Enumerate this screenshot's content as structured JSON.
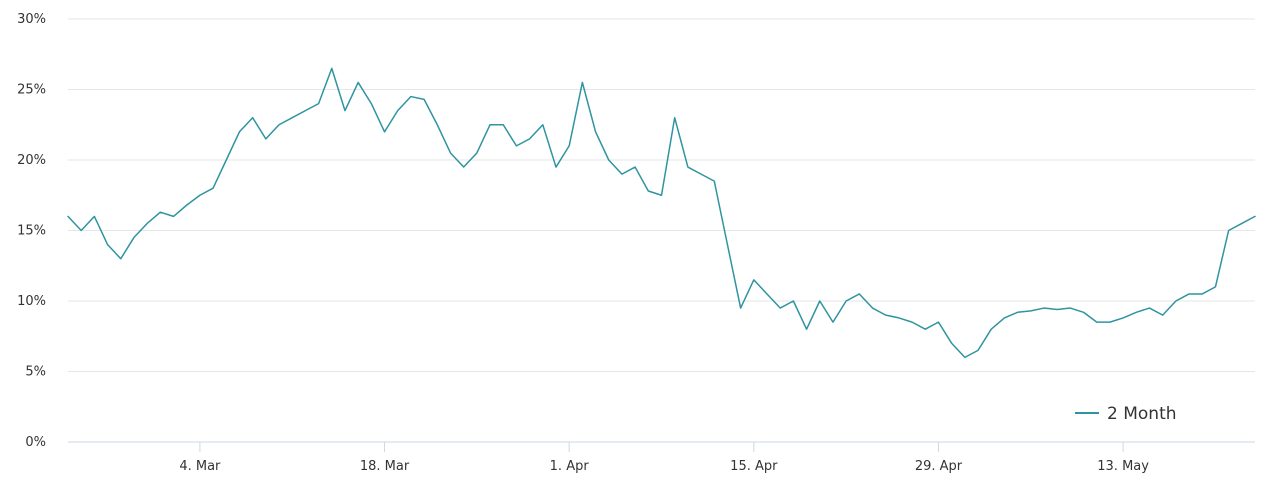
{
  "chart_data": {
    "type": "line",
    "title": "",
    "xlabel": "",
    "ylabel": "",
    "grid": "horizontal",
    "legend_position": "bottom-right",
    "ylim": [
      0,
      30
    ],
    "xlim": [
      "2024-02-23",
      "2024-05-23"
    ],
    "y_ticks": [
      0,
      5,
      10,
      15,
      20,
      25,
      30
    ],
    "y_tick_labels": [
      "0%",
      "5%",
      "10%",
      "15%",
      "20%",
      "25%",
      "30%"
    ],
    "x_ticks": [
      "2024-03-04",
      "2024-03-18",
      "2024-04-01",
      "2024-04-15",
      "2024-04-29",
      "2024-05-13"
    ],
    "x_tick_labels": [
      "4. Mar",
      "18. Mar",
      "1. Apr",
      "15. Apr",
      "29. Apr",
      "13. May"
    ],
    "colors": {
      "series": "#2f94a0",
      "grid": "#e6e6e6",
      "axis": "#ccd6eb"
    },
    "series": [
      {
        "name": "2 Month",
        "points": [
          [
            "2024-02-23",
            16.0
          ],
          [
            "2024-02-24",
            15.0
          ],
          [
            "2024-02-25",
            16.0
          ],
          [
            "2024-02-26",
            14.0
          ],
          [
            "2024-02-27",
            13.0
          ],
          [
            "2024-02-28",
            14.5
          ],
          [
            "2024-02-29",
            15.5
          ],
          [
            "2024-03-01",
            16.3
          ],
          [
            "2024-03-02",
            16.0
          ],
          [
            "2024-03-03",
            16.8
          ],
          [
            "2024-03-04",
            17.5
          ],
          [
            "2024-03-05",
            18.0
          ],
          [
            "2024-03-06",
            20.0
          ],
          [
            "2024-03-07",
            22.0
          ],
          [
            "2024-03-08",
            23.0
          ],
          [
            "2024-03-09",
            21.5
          ],
          [
            "2024-03-10",
            22.5
          ],
          [
            "2024-03-11",
            23.0
          ],
          [
            "2024-03-12",
            23.5
          ],
          [
            "2024-03-13",
            24.0
          ],
          [
            "2024-03-14",
            26.5
          ],
          [
            "2024-03-15",
            23.5
          ],
          [
            "2024-03-16",
            25.5
          ],
          [
            "2024-03-17",
            24.0
          ],
          [
            "2024-03-18",
            22.0
          ],
          [
            "2024-03-19",
            23.5
          ],
          [
            "2024-03-20",
            24.5
          ],
          [
            "2024-03-21",
            24.3
          ],
          [
            "2024-03-22",
            22.5
          ],
          [
            "2024-03-23",
            20.5
          ],
          [
            "2024-03-24",
            19.5
          ],
          [
            "2024-03-25",
            20.5
          ],
          [
            "2024-03-26",
            22.5
          ],
          [
            "2024-03-27",
            22.5
          ],
          [
            "2024-03-28",
            21.0
          ],
          [
            "2024-03-29",
            21.5
          ],
          [
            "2024-03-30",
            22.5
          ],
          [
            "2024-03-31",
            19.5
          ],
          [
            "2024-04-01",
            21.0
          ],
          [
            "2024-04-02",
            25.5
          ],
          [
            "2024-04-03",
            22.0
          ],
          [
            "2024-04-04",
            20.0
          ],
          [
            "2024-04-05",
            19.0
          ],
          [
            "2024-04-06",
            19.5
          ],
          [
            "2024-04-07",
            17.8
          ],
          [
            "2024-04-08",
            17.5
          ],
          [
            "2024-04-09",
            23.0
          ],
          [
            "2024-04-10",
            19.5
          ],
          [
            "2024-04-11",
            19.0
          ],
          [
            "2024-04-12",
            18.5
          ],
          [
            "2024-04-13",
            14.0
          ],
          [
            "2024-04-14",
            9.5
          ],
          [
            "2024-04-15",
            11.5
          ],
          [
            "2024-04-16",
            10.5
          ],
          [
            "2024-04-17",
            9.5
          ],
          [
            "2024-04-18",
            10.0
          ],
          [
            "2024-04-19",
            8.0
          ],
          [
            "2024-04-20",
            10.0
          ],
          [
            "2024-04-21",
            8.5
          ],
          [
            "2024-04-22",
            10.0
          ],
          [
            "2024-04-23",
            10.5
          ],
          [
            "2024-04-24",
            9.5
          ],
          [
            "2024-04-25",
            9.0
          ],
          [
            "2024-04-26",
            8.8
          ],
          [
            "2024-04-27",
            8.5
          ],
          [
            "2024-04-28",
            8.0
          ],
          [
            "2024-04-29",
            8.5
          ],
          [
            "2024-04-30",
            7.0
          ],
          [
            "2024-05-01",
            6.0
          ],
          [
            "2024-05-02",
            6.5
          ],
          [
            "2024-05-03",
            8.0
          ],
          [
            "2024-05-04",
            8.8
          ],
          [
            "2024-05-05",
            9.2
          ],
          [
            "2024-05-06",
            9.3
          ],
          [
            "2024-05-07",
            9.5
          ],
          [
            "2024-05-08",
            9.4
          ],
          [
            "2024-05-09",
            9.5
          ],
          [
            "2024-05-10",
            9.2
          ],
          [
            "2024-05-11",
            8.5
          ],
          [
            "2024-05-12",
            8.5
          ],
          [
            "2024-05-13",
            8.8
          ],
          [
            "2024-05-14",
            9.2
          ],
          [
            "2024-05-15",
            9.5
          ],
          [
            "2024-05-16",
            9.0
          ],
          [
            "2024-05-17",
            10.0
          ],
          [
            "2024-05-18",
            10.5
          ],
          [
            "2024-05-19",
            10.5
          ],
          [
            "2024-05-20",
            11.0
          ],
          [
            "2024-05-21",
            15.0
          ],
          [
            "2024-05-22",
            15.5
          ],
          [
            "2024-05-23",
            16.0
          ]
        ]
      }
    ]
  }
}
